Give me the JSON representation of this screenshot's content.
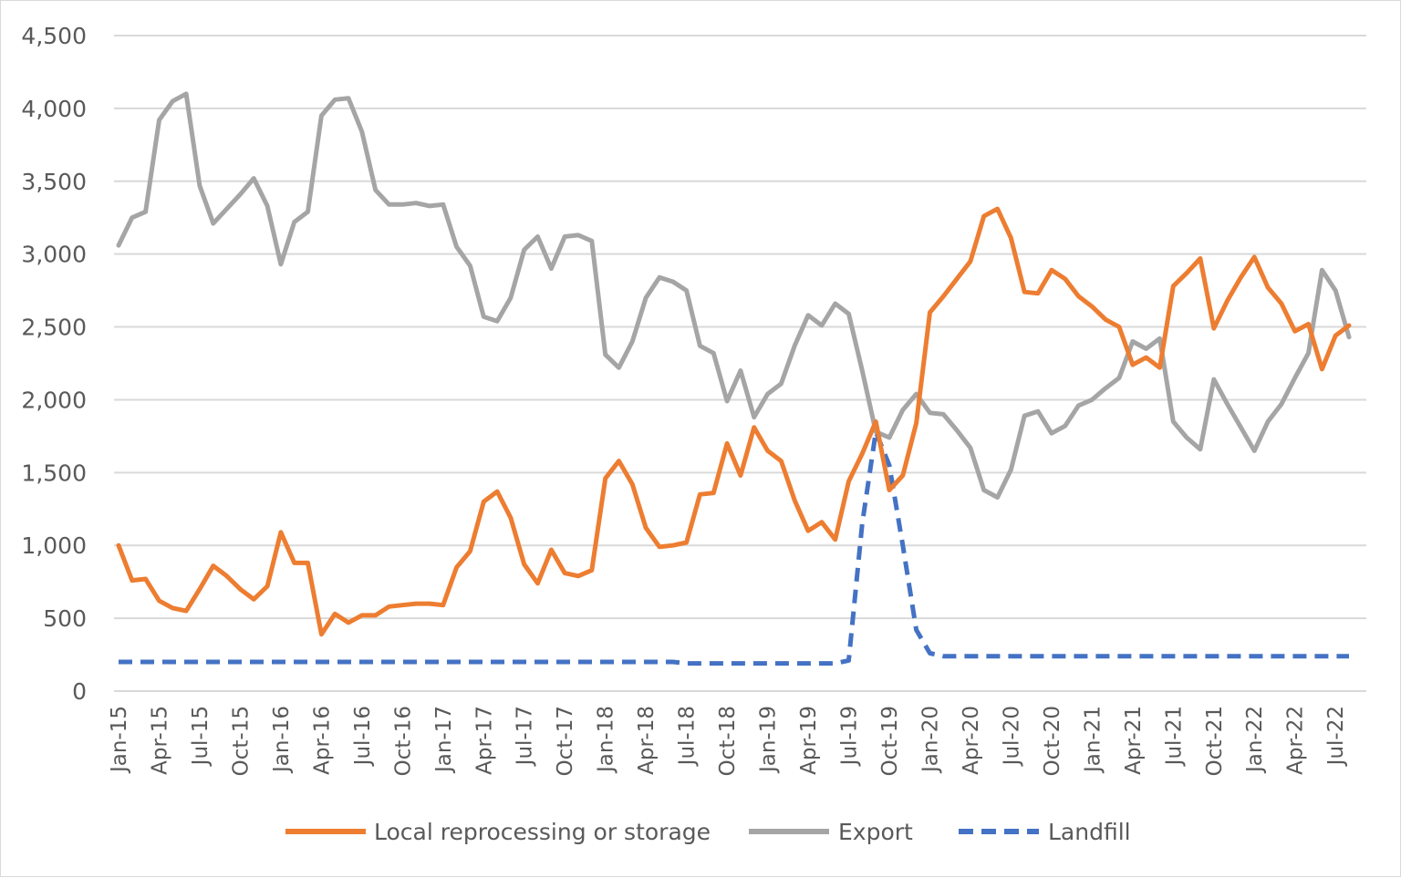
{
  "chart_data": {
    "type": "line",
    "title": "",
    "xlabel": "",
    "ylabel": "",
    "ylim": [
      0,
      4500
    ],
    "yticks": [
      0,
      500,
      1000,
      1500,
      2000,
      2500,
      3000,
      3500,
      4000,
      4500
    ],
    "ytick_labels": [
      "0",
      "500",
      "1,000",
      "1,500",
      "2,000",
      "2,500",
      "3,000",
      "3,500",
      "4,000",
      "4,500"
    ],
    "grid": true,
    "legend_position": "bottom",
    "x": [
      "Jan-15",
      "Feb-15",
      "Mar-15",
      "Apr-15",
      "May-15",
      "Jun-15",
      "Jul-15",
      "Aug-15",
      "Sep-15",
      "Oct-15",
      "Nov-15",
      "Dec-15",
      "Jan-16",
      "Feb-16",
      "Mar-16",
      "Apr-16",
      "May-16",
      "Jun-16",
      "Jul-16",
      "Aug-16",
      "Sep-16",
      "Oct-16",
      "Nov-16",
      "Dec-16",
      "Jan-17",
      "Feb-17",
      "Mar-17",
      "Apr-17",
      "May-17",
      "Jun-17",
      "Jul-17",
      "Aug-17",
      "Sep-17",
      "Oct-17",
      "Nov-17",
      "Dec-17",
      "Jan-18",
      "Feb-18",
      "Mar-18",
      "Apr-18",
      "May-18",
      "Jun-18",
      "Jul-18",
      "Aug-18",
      "Sep-18",
      "Oct-18",
      "Nov-18",
      "Dec-18",
      "Jan-19",
      "Feb-19",
      "Mar-19",
      "Apr-19",
      "May-19",
      "Jun-19",
      "Jul-19",
      "Aug-19",
      "Sep-19",
      "Oct-19",
      "Nov-19",
      "Dec-19",
      "Jan-20",
      "Feb-20",
      "Mar-20",
      "Apr-20",
      "May-20",
      "Jun-20",
      "Jul-20",
      "Aug-20",
      "Sep-20",
      "Oct-20",
      "Nov-20",
      "Dec-20",
      "Jan-21",
      "Feb-21",
      "Mar-21",
      "Apr-21",
      "May-21",
      "Jun-21",
      "Jul-21",
      "Aug-21",
      "Sep-21",
      "Oct-21",
      "Nov-21",
      "Dec-21",
      "Jan-22",
      "Feb-22",
      "Mar-22",
      "Apr-22",
      "May-22",
      "Jun-22",
      "Jul-22",
      "Aug-22"
    ],
    "x_tick_labels": [
      "Jan-15",
      "Apr-15",
      "Jul-15",
      "Oct-15",
      "Jan-16",
      "Apr-16",
      "Jul-16",
      "Oct-16",
      "Jan-17",
      "Apr-17",
      "Jul-17",
      "Oct-17",
      "Jan-18",
      "Apr-18",
      "Jul-18",
      "Oct-18",
      "Jan-19",
      "Apr-19",
      "Jul-19",
      "Oct-19",
      "Jan-20",
      "Apr-20",
      "Jul-20",
      "Oct-20",
      "Jan-21",
      "Apr-21",
      "Jul-21",
      "Oct-21",
      "Jan-22",
      "Apr-22",
      "Jul-22"
    ],
    "series": [
      {
        "name": "Local reprocessing or storage",
        "color": "#ed7d31",
        "dash": false,
        "values": [
          1000,
          760,
          770,
          620,
          570,
          550,
          700,
          860,
          790,
          700,
          630,
          720,
          1090,
          880,
          880,
          390,
          530,
          470,
          520,
          520,
          580,
          590,
          600,
          600,
          590,
          850,
          960,
          1300,
          1370,
          1190,
          870,
          740,
          970,
          810,
          790,
          830,
          1460,
          1580,
          1420,
          1120,
          990,
          1000,
          1020,
          1350,
          1360,
          1700,
          1480,
          1810,
          1650,
          1580,
          1310,
          1100,
          1160,
          1040,
          1440,
          1630,
          1850,
          1380,
          1480,
          1840,
          2600,
          2710,
          2830,
          2950,
          3260,
          3310,
          3110,
          2740,
          2730,
          2890,
          2830,
          2710,
          2640,
          2550,
          2500,
          2240,
          2290,
          2220,
          2780,
          2870,
          2970,
          2490,
          2680,
          2840,
          2980,
          2770,
          2660,
          2470,
          2520,
          2210,
          2440,
          2510
        ]
      },
      {
        "name": "Export",
        "color": "#a5a5a5",
        "dash": false,
        "values": [
          3060,
          3250,
          3290,
          3920,
          4050,
          4100,
          3470,
          3210,
          3310,
          3410,
          3520,
          3330,
          2930,
          3220,
          3290,
          3950,
          4060,
          4070,
          3840,
          3440,
          3340,
          3340,
          3350,
          3330,
          3340,
          3050,
          2920,
          2570,
          2540,
          2700,
          3030,
          3120,
          2900,
          3120,
          3130,
          3090,
          2310,
          2220,
          2400,
          2700,
          2840,
          2810,
          2750,
          2370,
          2320,
          1990,
          2200,
          1880,
          2040,
          2110,
          2370,
          2580,
          2510,
          2660,
          2590,
          2200,
          1780,
          1740,
          1930,
          2040,
          1910,
          1900,
          1790,
          1670,
          1380,
          1330,
          1520,
          1890,
          1920,
          1770,
          1820,
          1960,
          2000,
          2080,
          2150,
          2400,
          2350,
          2420,
          1850,
          1740,
          1660,
          2140,
          1970,
          1810,
          1650,
          1850,
          1970,
          2150,
          2320,
          2890,
          2750,
          2430
        ]
      },
      {
        "name": "Landfill",
        "color": "#4472c4",
        "dash": true,
        "values": [
          200,
          200,
          200,
          200,
          200,
          200,
          200,
          200,
          200,
          200,
          200,
          200,
          200,
          200,
          200,
          200,
          200,
          200,
          200,
          200,
          200,
          200,
          200,
          200,
          200,
          200,
          200,
          200,
          200,
          200,
          200,
          200,
          200,
          200,
          200,
          200,
          200,
          200,
          200,
          200,
          200,
          200,
          190,
          190,
          190,
          190,
          190,
          190,
          190,
          190,
          190,
          190,
          190,
          190,
          210,
          1150,
          1780,
          1550,
          1000,
          420,
          260,
          240,
          240,
          240,
          240,
          240,
          240,
          240,
          240,
          240,
          240,
          240,
          240,
          240,
          240,
          240,
          240,
          240,
          240,
          240,
          240,
          240,
          240,
          240,
          240,
          240,
          240,
          240,
          240,
          240,
          240,
          240
        ]
      }
    ]
  }
}
